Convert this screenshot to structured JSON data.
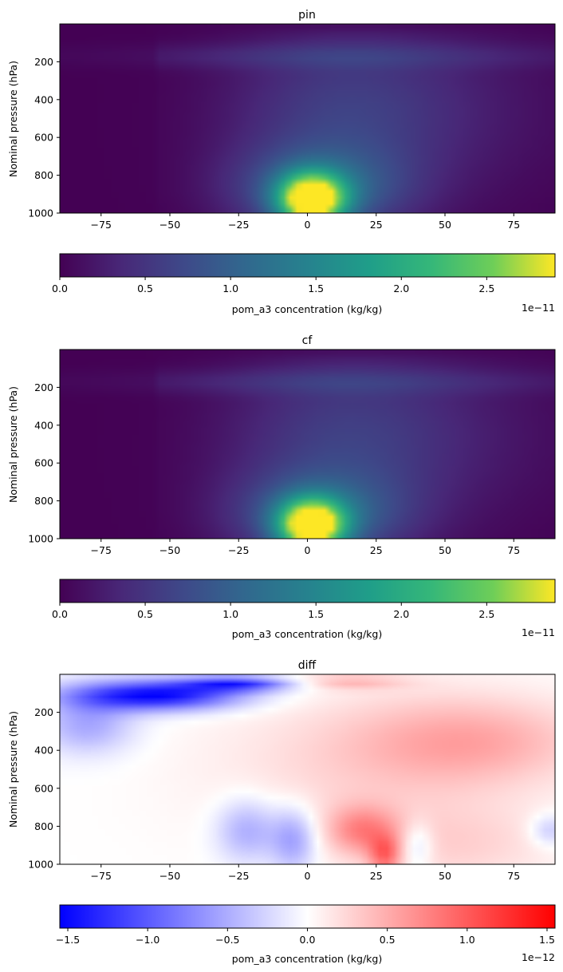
{
  "chart_data": [
    {
      "type": "heatmap",
      "title": "pin",
      "ylabel": "Nominal pressure (hPa)",
      "xlabel": "",
      "x_ticks": [
        -75,
        -50,
        -25,
        0,
        25,
        50,
        75
      ],
      "x_tick_labels": [
        "−75",
        "−50",
        "−25",
        "0",
        "25",
        "50",
        "75"
      ],
      "y_ticks": [
        200,
        400,
        600,
        800,
        1000
      ],
      "y_tick_labels": [
        "200",
        "400",
        "600",
        "800",
        "1000"
      ],
      "xlim": [
        -90,
        90
      ],
      "ylim": [
        1000,
        0
      ],
      "y_inverted": true,
      "colormap": "viridis",
      "colorbar": {
        "label": "pom_a3 concentration (kg/kg)",
        "orientation": "horizontal",
        "range": [
          0,
          2.9e-11
        ],
        "ticks": [
          0,
          0.5,
          1.0,
          1.5,
          2.0,
          2.5
        ],
        "tick_labels": [
          "0.0",
          "0.5",
          "1.0",
          "1.5",
          "2.0",
          "2.5"
        ],
        "offset_text": "1e−11"
      },
      "field": {
        "max_value": 2.9e-11,
        "peak_lat": 1,
        "peak_pressure_hPa": 930,
        "description_units": "kg/kg"
      }
    },
    {
      "type": "heatmap",
      "title": "cf",
      "ylabel": "Nominal pressure (hPa)",
      "xlabel": "",
      "x_ticks": [
        -75,
        -50,
        -25,
        0,
        25,
        50,
        75
      ],
      "x_tick_labels": [
        "−75",
        "−50",
        "−25",
        "0",
        "25",
        "50",
        "75"
      ],
      "y_ticks": [
        200,
        400,
        600,
        800,
        1000
      ],
      "y_tick_labels": [
        "200",
        "400",
        "600",
        "800",
        "1000"
      ],
      "xlim": [
        -90,
        90
      ],
      "ylim": [
        1000,
        0
      ],
      "y_inverted": true,
      "colormap": "viridis",
      "colorbar": {
        "label": "pom_a3 concentration (kg/kg)",
        "orientation": "horizontal",
        "range": [
          0,
          2.9e-11
        ],
        "ticks": [
          0,
          0.5,
          1.0,
          1.5,
          2.0,
          2.5
        ],
        "tick_labels": [
          "0.0",
          "0.5",
          "1.0",
          "1.5",
          "2.0",
          "2.5"
        ],
        "offset_text": "1e−11"
      },
      "field": {
        "max_value": 2.85e-11,
        "peak_lat": 1,
        "peak_pressure_hPa": 920,
        "description_units": "kg/kg"
      }
    },
    {
      "type": "heatmap",
      "title": "diff",
      "ylabel": "Nominal pressure (hPa)",
      "xlabel": "",
      "x_ticks": [
        -75,
        -50,
        -25,
        0,
        25,
        50,
        75
      ],
      "x_tick_labels": [
        "−75",
        "−50",
        "−25",
        "0",
        "25",
        "50",
        "75"
      ],
      "y_ticks": [
        200,
        400,
        600,
        800,
        1000
      ],
      "y_tick_labels": [
        "200",
        "400",
        "600",
        "800",
        "1000"
      ],
      "xlim": [
        -90,
        90
      ],
      "ylim": [
        1000,
        0
      ],
      "y_inverted": true,
      "colormap": "bwr",
      "colorbar": {
        "label": "pom_a3 concentration (kg/kg)",
        "orientation": "horizontal",
        "range": [
          -1.55e-12,
          1.55e-12
        ],
        "ticks": [
          -1.5,
          -1.0,
          -0.5,
          0.0,
          0.5,
          1.0,
          1.5
        ],
        "tick_labels": [
          "−1.5",
          "−1.0",
          "−0.5",
          "0.0",
          "0.5",
          "1.0",
          "1.5"
        ],
        "offset_text": "1e−12"
      },
      "field": {
        "min_value": -1.55e-12,
        "max_value": 1.55e-12,
        "description_units": "kg/kg"
      }
    }
  ]
}
